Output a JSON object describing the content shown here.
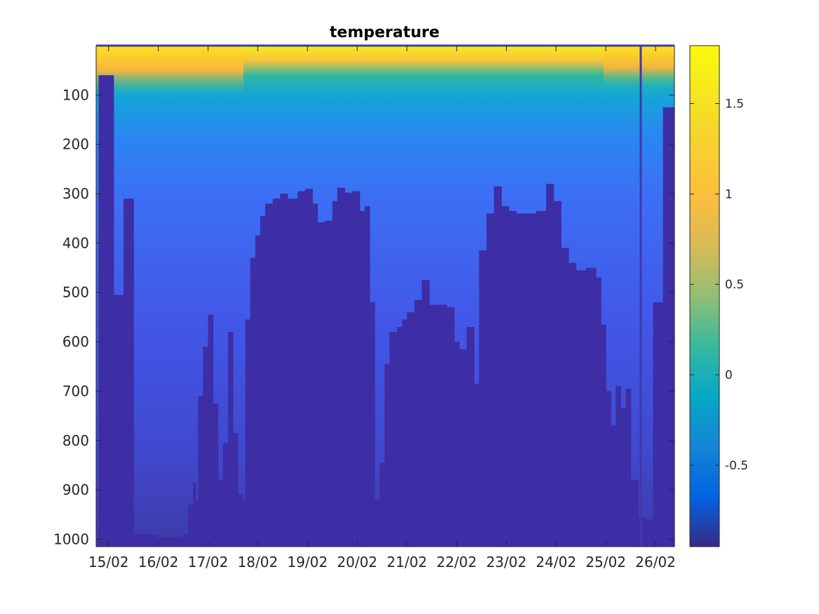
{
  "chart_data": {
    "type": "heatmap",
    "title": "temperature",
    "xlabel": "",
    "ylabel": "",
    "x_tick_labels": [
      "15/02",
      "16/02",
      "17/02",
      "18/02",
      "19/02",
      "20/02",
      "21/02",
      "22/02",
      "23/02",
      "24/02",
      "25/02",
      "26/02"
    ],
    "x_range_days": [
      14.75,
      26.38
    ],
    "y_ticks": [
      100,
      200,
      300,
      400,
      500,
      600,
      700,
      800,
      900,
      1000
    ],
    "y_range": [
      0,
      1015
    ],
    "y_reversed": true,
    "colorbar": {
      "range": [
        -0.95,
        1.82
      ],
      "ticks": [
        -0.5,
        0,
        0.5,
        1,
        1.5
      ],
      "tick_labels": [
        "-0.5",
        "0",
        "0.5",
        "1",
        "1.5"
      ],
      "colormap": "parula"
    },
    "profile_bottom_depth": [
      [
        14.8,
        60
      ],
      [
        15.1,
        505
      ],
      [
        15.3,
        310
      ],
      [
        15.5,
        990
      ],
      [
        16.0,
        995
      ],
      [
        16.5,
        990
      ],
      [
        16.6,
        930
      ],
      [
        16.7,
        885
      ],
      [
        16.75,
        920
      ],
      [
        16.8,
        710
      ],
      [
        16.9,
        610
      ],
      [
        17.0,
        545
      ],
      [
        17.1,
        725
      ],
      [
        17.2,
        880
      ],
      [
        17.3,
        805
      ],
      [
        17.4,
        580
      ],
      [
        17.5,
        785
      ],
      [
        17.6,
        910
      ],
      [
        17.7,
        920
      ],
      [
        17.75,
        555
      ],
      [
        17.85,
        430
      ],
      [
        17.95,
        385
      ],
      [
        18.05,
        345
      ],
      [
        18.15,
        320
      ],
      [
        18.3,
        310
      ],
      [
        18.45,
        300
      ],
      [
        18.6,
        310
      ],
      [
        18.8,
        295
      ],
      [
        18.95,
        290
      ],
      [
        19.1,
        320
      ],
      [
        19.2,
        358
      ],
      [
        19.35,
        355
      ],
      [
        19.5,
        315
      ],
      [
        19.6,
        288
      ],
      [
        19.75,
        298
      ],
      [
        19.9,
        295
      ],
      [
        20.05,
        335
      ],
      [
        20.15,
        325
      ],
      [
        20.25,
        520
      ],
      [
        20.35,
        920
      ],
      [
        20.45,
        845
      ],
      [
        20.55,
        645
      ],
      [
        20.65,
        580
      ],
      [
        20.8,
        570
      ],
      [
        20.9,
        555
      ],
      [
        21.0,
        540
      ],
      [
        21.15,
        515
      ],
      [
        21.3,
        475
      ],
      [
        21.45,
        525
      ],
      [
        21.6,
        525
      ],
      [
        21.8,
        530
      ],
      [
        21.95,
        600
      ],
      [
        22.05,
        615
      ],
      [
        22.2,
        570
      ],
      [
        22.35,
        685
      ],
      [
        22.45,
        415
      ],
      [
        22.6,
        340
      ],
      [
        22.75,
        285
      ],
      [
        22.9,
        325
      ],
      [
        23.05,
        335
      ],
      [
        23.2,
        340
      ],
      [
        23.4,
        340
      ],
      [
        23.6,
        335
      ],
      [
        23.8,
        280
      ],
      [
        23.95,
        315
      ],
      [
        24.1,
        410
      ],
      [
        24.25,
        440
      ],
      [
        24.4,
        455
      ],
      [
        24.6,
        450
      ],
      [
        24.8,
        470
      ],
      [
        24.9,
        565
      ],
      [
        25.0,
        700
      ],
      [
        25.1,
        770
      ],
      [
        25.2,
        690
      ],
      [
        25.3,
        735
      ],
      [
        25.4,
        695
      ],
      [
        25.5,
        880
      ],
      [
        25.65,
        955
      ],
      [
        25.8,
        960
      ],
      [
        25.95,
        520
      ],
      [
        26.15,
        125
      ],
      [
        26.38,
        125
      ]
    ]
  }
}
